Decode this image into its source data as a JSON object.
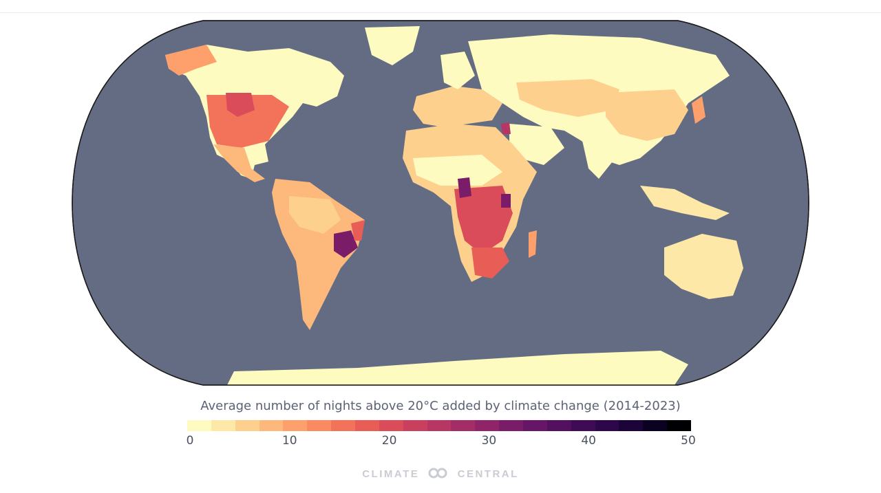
{
  "map": {
    "ocean_color": "#636c82",
    "land_base_color": "#fefbc0",
    "border_color": "#1a1a1a"
  },
  "legend": {
    "title": "Average number of nights above 20°C added by climate change (2014-2023)",
    "min": 0,
    "max": 50,
    "tick_values": [
      "0",
      "10",
      "20",
      "30",
      "40",
      "50"
    ],
    "colors": [
      "#fefbc0",
      "#fde8a8",
      "#fdd08e",
      "#fdb87c",
      "#fda06c",
      "#f98a62",
      "#f2735a",
      "#e85e57",
      "#da4c5a",
      "#c9405f",
      "#b73664",
      "#a32d67",
      "#8f2468",
      "#7b1c69",
      "#671566",
      "#53105f",
      "#3f0b55",
      "#2c074a",
      "#1a0438",
      "#0b0221",
      "#000004"
    ]
  },
  "brand": {
    "left": "CLIMATE",
    "right": "CENTRAL",
    "icon": "climate-central-logo-icon"
  }
}
